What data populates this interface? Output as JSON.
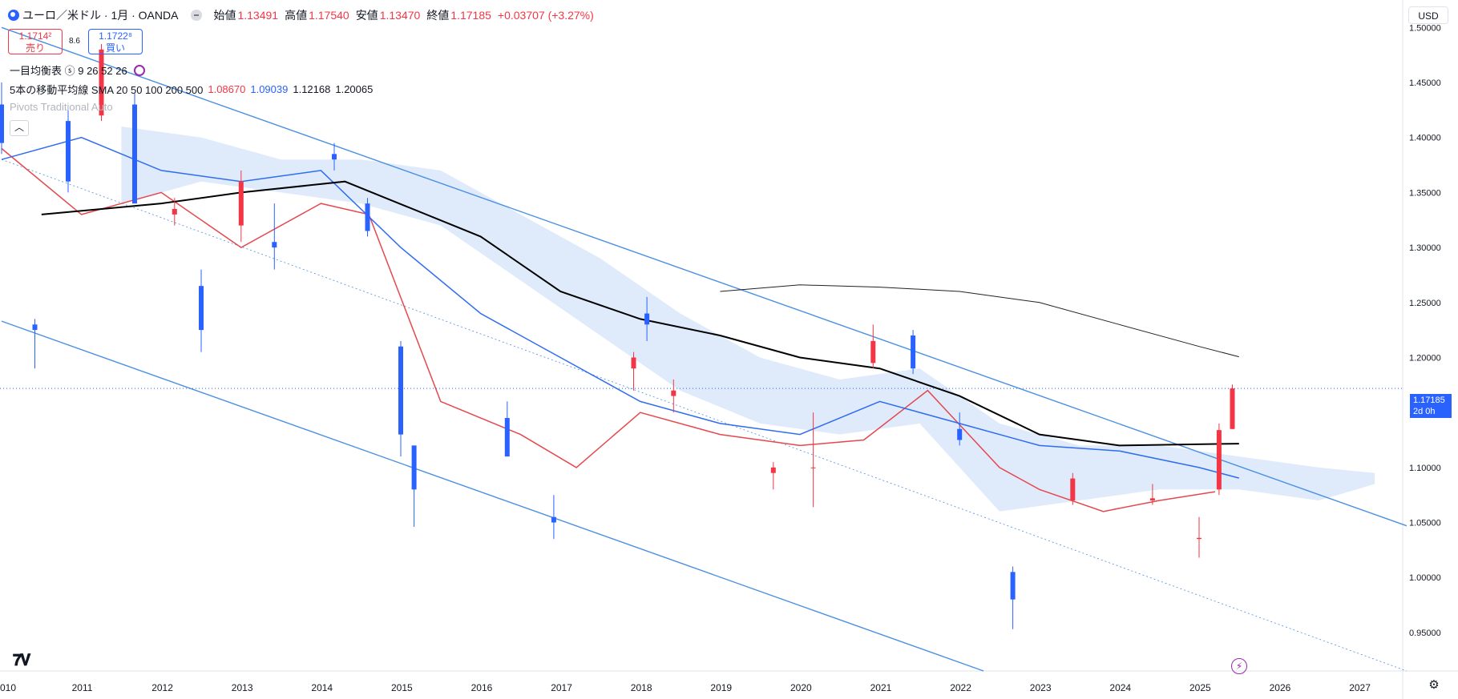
{
  "header": {
    "symbol": "ユーロ／米ドル · 1月 · OANDA",
    "open_label": "始値",
    "open_value": "1.13491",
    "high_label": "高値",
    "high_value": "1.17540",
    "low_label": "安値",
    "low_value": "1.13470",
    "close_label": "終値",
    "close_value": "1.17185",
    "change": "+0.03707 (+3.27%)"
  },
  "quote": {
    "sell_price": "1.1714²",
    "sell_label": "売り",
    "spread": "8.6",
    "buy_price": "1.1722⁸",
    "buy_label": "買い"
  },
  "indicators": {
    "ichimoku": {
      "label": "一目均衡表 ⓢ 9 26 52 26"
    },
    "sma": {
      "label": "5本の移動平均線 SMA 20 50 100 200 500",
      "v1": "1.08670",
      "v2": "1.09039",
      "v3": "1.12168",
      "v4": "1.20065"
    },
    "pivots": {
      "label": "Pivots Traditional Auto"
    }
  },
  "currency": "USD",
  "price_tag": {
    "price": "1.17185",
    "countdown": "2d 0h"
  },
  "icons": {
    "logo": "tradingview-logo",
    "flash": "flash-icon",
    "settings": "gear-icon",
    "collapse": "chevron-up-icon"
  },
  "colors": {
    "up": "#f23645",
    "down": "#2962ff",
    "channel": "#4a90e2",
    "cloud": "#dbe9fb",
    "cloud_bear": "#fbe1e1",
    "sma20": "#e5484d",
    "sma50": "#2f6cf0",
    "sma200": "#000000",
    "sma500": "#222222"
  },
  "chart_data": {
    "type": "candlestick",
    "title": "ユーロ／米ドル · 1月 · OANDA",
    "x_ticks": [
      "010",
      "2011",
      "2012",
      "2013",
      "2014",
      "2015",
      "2016",
      "2017",
      "2018",
      "2019",
      "2020",
      "2021",
      "2022",
      "2023",
      "2024",
      "2025",
      "2026",
      "2027"
    ],
    "y_ticks": [
      "1.50000",
      "1.45000",
      "1.40000",
      "1.35000",
      "1.30000",
      "1.25000",
      "1.20000",
      "1.15000",
      "1.10000",
      "1.05000",
      "1.00000",
      "0.95000"
    ],
    "ylim": [
      0.915,
      1.525
    ],
    "x_range": [
      "2010-01",
      "2027-12"
    ],
    "last_price": 1.17185,
    "candles": [
      {
        "t": "2010-01",
        "o": 1.43,
        "h": 1.45,
        "l": 1.385,
        "c": 1.395
      },
      {
        "t": "2010-06",
        "o": 1.23,
        "h": 1.235,
        "l": 1.19,
        "c": 1.225
      },
      {
        "t": "2010-11",
        "o": 1.415,
        "h": 1.425,
        "l": 1.35,
        "c": 1.36
      },
      {
        "t": "2011-04",
        "o": 1.42,
        "h": 1.485,
        "l": 1.415,
        "c": 1.48
      },
      {
        "t": "2011-09",
        "o": 1.43,
        "h": 1.44,
        "l": 1.34,
        "c": 1.34
      },
      {
        "t": "2012-03",
        "o": 1.33,
        "h": 1.345,
        "l": 1.32,
        "c": 1.335
      },
      {
        "t": "2012-07",
        "o": 1.265,
        "h": 1.28,
        "l": 1.205,
        "c": 1.225
      },
      {
        "t": "2013-01",
        "o": 1.32,
        "h": 1.37,
        "l": 1.305,
        "c": 1.36
      },
      {
        "t": "2013-06",
        "o": 1.305,
        "h": 1.34,
        "l": 1.28,
        "c": 1.3
      },
      {
        "t": "2014-03",
        "o": 1.385,
        "h": 1.395,
        "l": 1.37,
        "c": 1.38
      },
      {
        "t": "2014-08",
        "o": 1.34,
        "h": 1.345,
        "l": 1.31,
        "c": 1.315
      },
      {
        "t": "2015-01",
        "o": 1.21,
        "h": 1.215,
        "l": 1.11,
        "c": 1.13
      },
      {
        "t": "2015-03",
        "o": 1.12,
        "h": 1.12,
        "l": 1.046,
        "c": 1.08
      },
      {
        "t": "2016-05",
        "o": 1.145,
        "h": 1.16,
        "l": 1.11,
        "c": 1.11
      },
      {
        "t": "2016-12",
        "o": 1.055,
        "h": 1.075,
        "l": 1.035,
        "c": 1.05
      },
      {
        "t": "2017-12",
        "o": 1.19,
        "h": 1.205,
        "l": 1.17,
        "c": 1.2
      },
      {
        "t": "2018-02",
        "o": 1.24,
        "h": 1.255,
        "l": 1.215,
        "c": 1.23
      },
      {
        "t": "2018-06",
        "o": 1.165,
        "h": 1.18,
        "l": 1.15,
        "c": 1.17
      },
      {
        "t": "2019-09",
        "o": 1.095,
        "h": 1.105,
        "l": 1.08,
        "c": 1.1
      },
      {
        "t": "2020-03",
        "o": 1.1,
        "h": 1.15,
        "l": 1.064,
        "c": 1.1
      },
      {
        "t": "2020-12",
        "o": 1.195,
        "h": 1.23,
        "l": 1.19,
        "c": 1.215
      },
      {
        "t": "2021-06",
        "o": 1.22,
        "h": 1.225,
        "l": 1.185,
        "c": 1.19
      },
      {
        "t": "2022-01",
        "o": 1.135,
        "h": 1.15,
        "l": 1.12,
        "c": 1.125
      },
      {
        "t": "2022-09",
        "o": 1.005,
        "h": 1.01,
        "l": 0.953,
        "c": 0.98
      },
      {
        "t": "2023-06",
        "o": 1.07,
        "h": 1.095,
        "l": 1.066,
        "c": 1.09
      },
      {
        "t": "2024-06",
        "o": 1.07,
        "h": 1.085,
        "l": 1.066,
        "c": 1.072
      },
      {
        "t": "2025-01",
        "o": 1.035,
        "h": 1.055,
        "l": 1.018,
        "c": 1.036
      },
      {
        "t": "2025-04",
        "o": 1.08,
        "h": 1.14,
        "l": 1.075,
        "c": 1.134
      },
      {
        "t": "2025-06",
        "o": 1.135,
        "h": 1.1754,
        "l": 1.1347,
        "c": 1.17185
      }
    ],
    "series": [
      {
        "name": "SMA 20",
        "values": [
          [
            2010.0,
            1.39
          ],
          [
            2011.0,
            1.33
          ],
          [
            2012.0,
            1.35
          ],
          [
            2013.0,
            1.3
          ],
          [
            2014.0,
            1.34
          ],
          [
            2014.6,
            1.33
          ],
          [
            2015.5,
            1.16
          ],
          [
            2016.5,
            1.13
          ],
          [
            2017.2,
            1.1
          ],
          [
            2018.0,
            1.15
          ],
          [
            2019.0,
            1.13
          ],
          [
            2020.0,
            1.12
          ],
          [
            2020.8,
            1.125
          ],
          [
            2021.6,
            1.17
          ],
          [
            2022.5,
            1.1
          ],
          [
            2023.0,
            1.08
          ],
          [
            2023.8,
            1.06
          ],
          [
            2024.5,
            1.07
          ],
          [
            2025.2,
            1.078
          ]
        ]
      },
      {
        "name": "SMA 50",
        "values": [
          [
            2010.0,
            1.38
          ],
          [
            2011.0,
            1.4
          ],
          [
            2012.0,
            1.37
          ],
          [
            2013.0,
            1.36
          ],
          [
            2014.0,
            1.37
          ],
          [
            2015.0,
            1.3
          ],
          [
            2016.0,
            1.24
          ],
          [
            2017.0,
            1.2
          ],
          [
            2018.0,
            1.16
          ],
          [
            2019.0,
            1.14
          ],
          [
            2020.0,
            1.13
          ],
          [
            2021.0,
            1.16
          ],
          [
            2022.0,
            1.14
          ],
          [
            2023.0,
            1.12
          ],
          [
            2024.0,
            1.115
          ],
          [
            2025.0,
            1.1
          ],
          [
            2025.5,
            1.09039
          ]
        ]
      },
      {
        "name": "SMA 100",
        "values": [
          [
            2010.5,
            1.33
          ],
          [
            2012.0,
            1.34
          ],
          [
            2013.0,
            1.35
          ],
          [
            2014.3,
            1.36
          ],
          [
            2016.0,
            1.31
          ],
          [
            2017.0,
            1.26
          ],
          [
            2018.0,
            1.235
          ],
          [
            2019.0,
            1.22
          ],
          [
            2020.0,
            1.2
          ],
          [
            2021.0,
            1.19
          ],
          [
            2022.0,
            1.165
          ],
          [
            2023.0,
            1.13
          ],
          [
            2024.0,
            1.12
          ],
          [
            2025.5,
            1.12168
          ]
        ]
      },
      {
        "name": "SMA 200",
        "values": [
          [
            2019.0,
            1.26
          ],
          [
            2020.0,
            1.266
          ],
          [
            2021.0,
            1.264
          ],
          [
            2022.0,
            1.26
          ],
          [
            2023.0,
            1.25
          ],
          [
            2024.0,
            1.23
          ],
          [
            2025.0,
            1.21
          ],
          [
            2025.5,
            1.20065
          ]
        ]
      }
    ]
  }
}
